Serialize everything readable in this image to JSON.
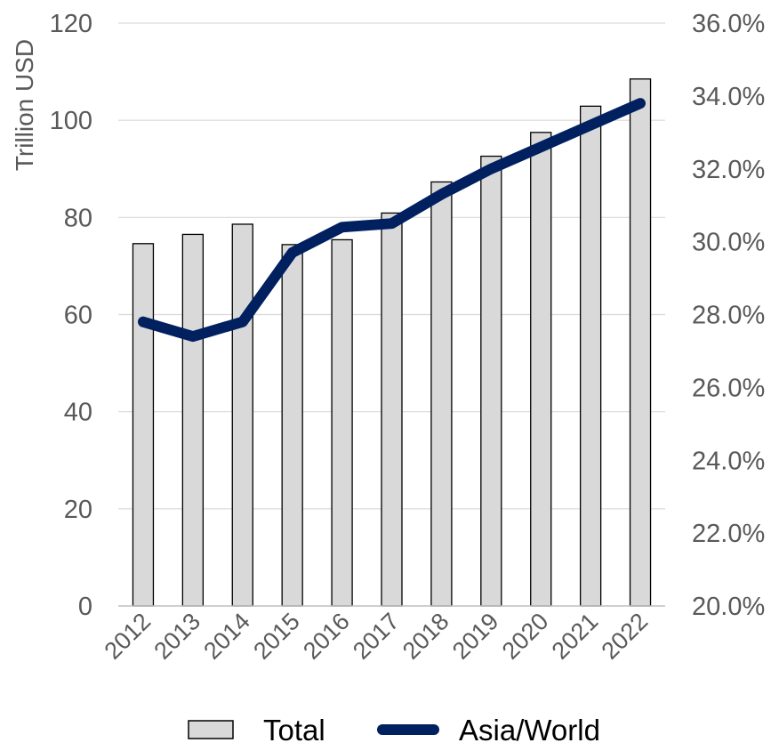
{
  "chart_data": {
    "type": "bar",
    "title": "",
    "categories": [
      "2012",
      "2013",
      "2014",
      "2015",
      "2016",
      "2017",
      "2018",
      "2019",
      "2020",
      "2021",
      "2022"
    ],
    "series": [
      {
        "name": "Total",
        "type": "bar",
        "axis": "left",
        "values": [
          74.6,
          76.5,
          78.6,
          74.4,
          75.4,
          80.9,
          87.3,
          92.6,
          97.5,
          102.9,
          108.5
        ],
        "color": "#d9d9d9"
      },
      {
        "name": "Asia/World",
        "type": "line",
        "axis": "right",
        "values": [
          0.278,
          0.274,
          0.278,
          0.297,
          0.304,
          0.305,
          0.313,
          0.32,
          0.326,
          0.332,
          0.338
        ],
        "color": "#002060"
      }
    ],
    "ylabel": "Trillion USD",
    "ylim": [
      0,
      120
    ],
    "yticks": [
      "0",
      "20",
      "40",
      "60",
      "80",
      "100",
      "120"
    ],
    "y2lim": [
      0.2,
      0.36
    ],
    "y2ticks": [
      "20.0%",
      "22.0%",
      "24.0%",
      "26.0%",
      "28.0%",
      "30.0%",
      "32.0%",
      "34.0%",
      "36.0%"
    ],
    "grid": true,
    "legend_position": "bottom",
    "legend": [
      "Total",
      "Asia/World"
    ]
  }
}
